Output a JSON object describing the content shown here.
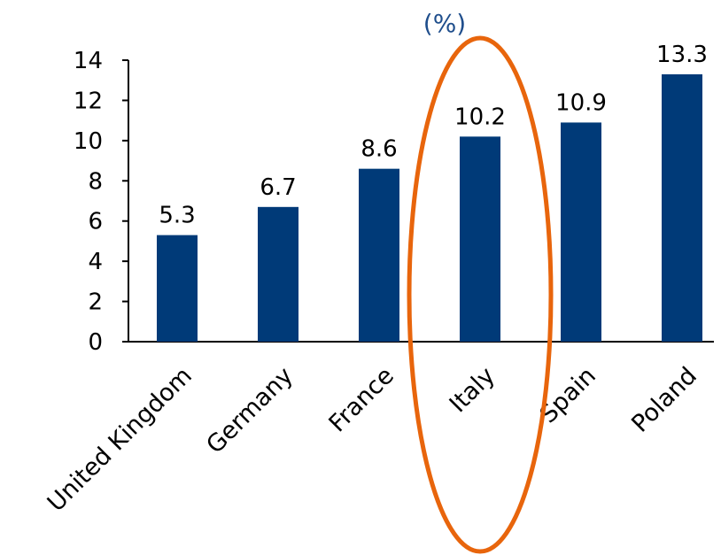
{
  "chart_data": {
    "type": "bar",
    "title": "",
    "subtitle": "(%)",
    "xlabel": "",
    "ylabel": "",
    "categories": [
      "United Kingdom",
      "Germany",
      "France",
      "Italy",
      "Spain",
      "Poland"
    ],
    "values": [
      5.3,
      6.7,
      8.6,
      10.2,
      10.9,
      13.3
    ],
    "data_labels": [
      "5.3",
      "6.7",
      "8.6",
      "10.2",
      "10.9",
      "13.3"
    ],
    "ylim": [
      0,
      14
    ],
    "yticks": [
      0,
      2,
      4,
      6,
      8,
      10,
      12,
      14
    ],
    "grid": false,
    "legend": "none",
    "highlight_category": "Italy"
  },
  "colors": {
    "bar": "#003A78",
    "highlight": "#E8650C",
    "subtitle": "#1F4E8C",
    "axis": "#000000"
  }
}
